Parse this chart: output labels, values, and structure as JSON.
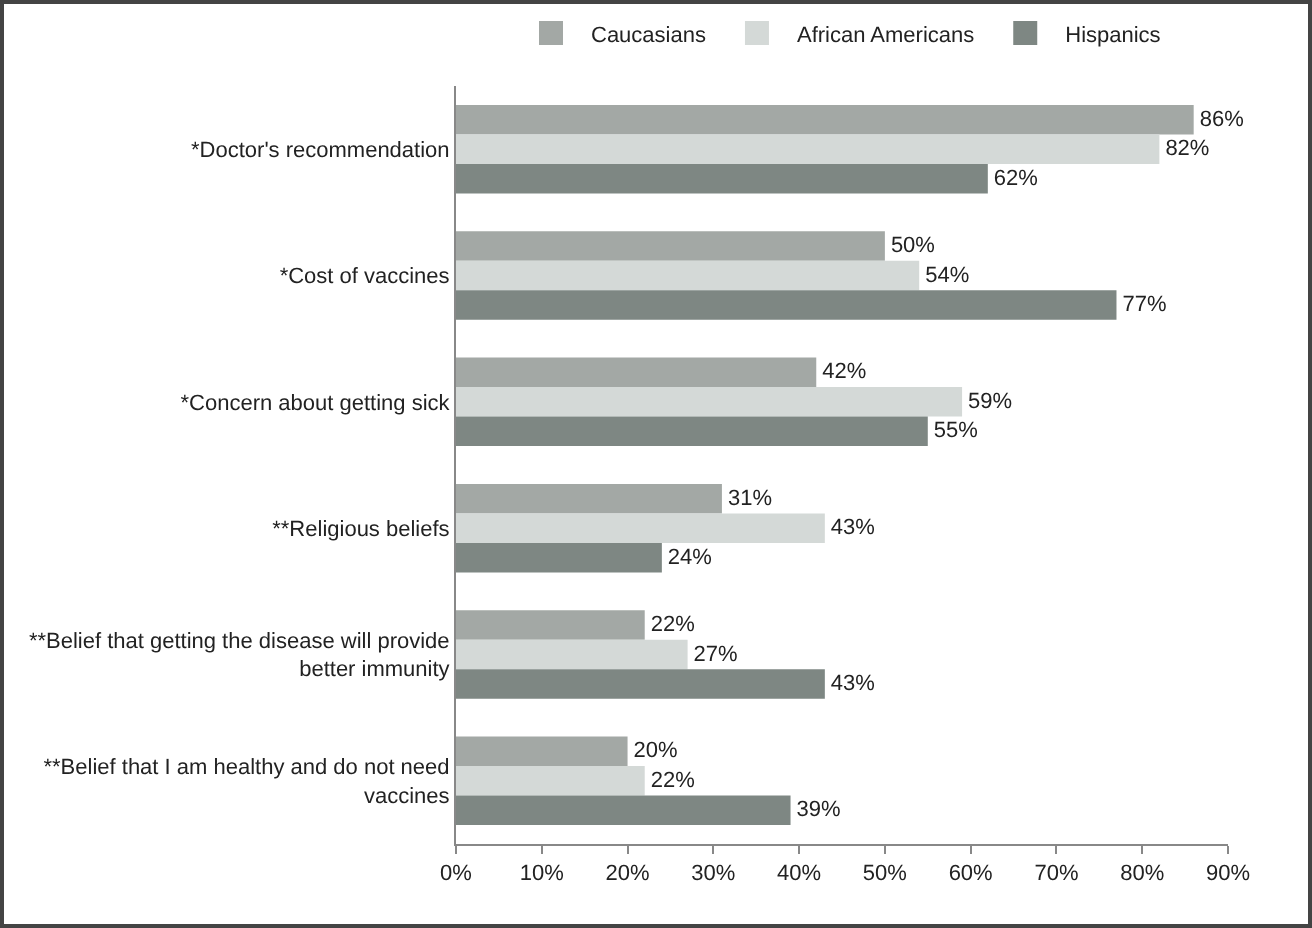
{
  "chart_data": {
    "type": "bar",
    "orientation": "horizontal",
    "legend": "top",
    "grid": false,
    "categories": [
      "*Doctor's recommendation",
      "*Cost of vaccines",
      "*Concern about getting sick",
      "**Religious beliefs",
      "**Belief that getting the disease will provide better immunity",
      "**Belief that I am healthy and do not need vaccines"
    ],
    "series": [
      {
        "name": "Caucasians",
        "color": "#a3a8a5",
        "values": [
          86,
          50,
          42,
          31,
          22,
          20
        ],
        "value_labels": [
          "86%",
          "50%",
          "42%",
          "31%",
          "22%",
          "20%"
        ]
      },
      {
        "name": "African Americans",
        "color": "#d4d9d7",
        "values": [
          82,
          54,
          59,
          43,
          27,
          22
        ],
        "value_labels": [
          "82%",
          "54%",
          "59%",
          "43%",
          "27%",
          "22%"
        ]
      },
      {
        "name": "Hispanics",
        "color": "#7e8783",
        "values": [
          62,
          77,
          55,
          24,
          43,
          39
        ],
        "value_labels": [
          "62%",
          "77%",
          "55%",
          "24%",
          "43%",
          "39%"
        ]
      }
    ],
    "xlim": [
      0,
      90
    ],
    "xticks": [
      {
        "value": 0,
        "label": "0%"
      },
      {
        "value": 10,
        "label": "10%"
      },
      {
        "value": 20,
        "label": "20%"
      },
      {
        "value": 30,
        "label": "30%"
      },
      {
        "value": 40,
        "label": "40%"
      },
      {
        "value": 50,
        "label": "50%"
      },
      {
        "value": 60,
        "label": "60%"
      },
      {
        "value": 70,
        "label": "70%"
      },
      {
        "value": 80,
        "label": "80%"
      },
      {
        "value": 90,
        "label": "90%"
      }
    ]
  }
}
